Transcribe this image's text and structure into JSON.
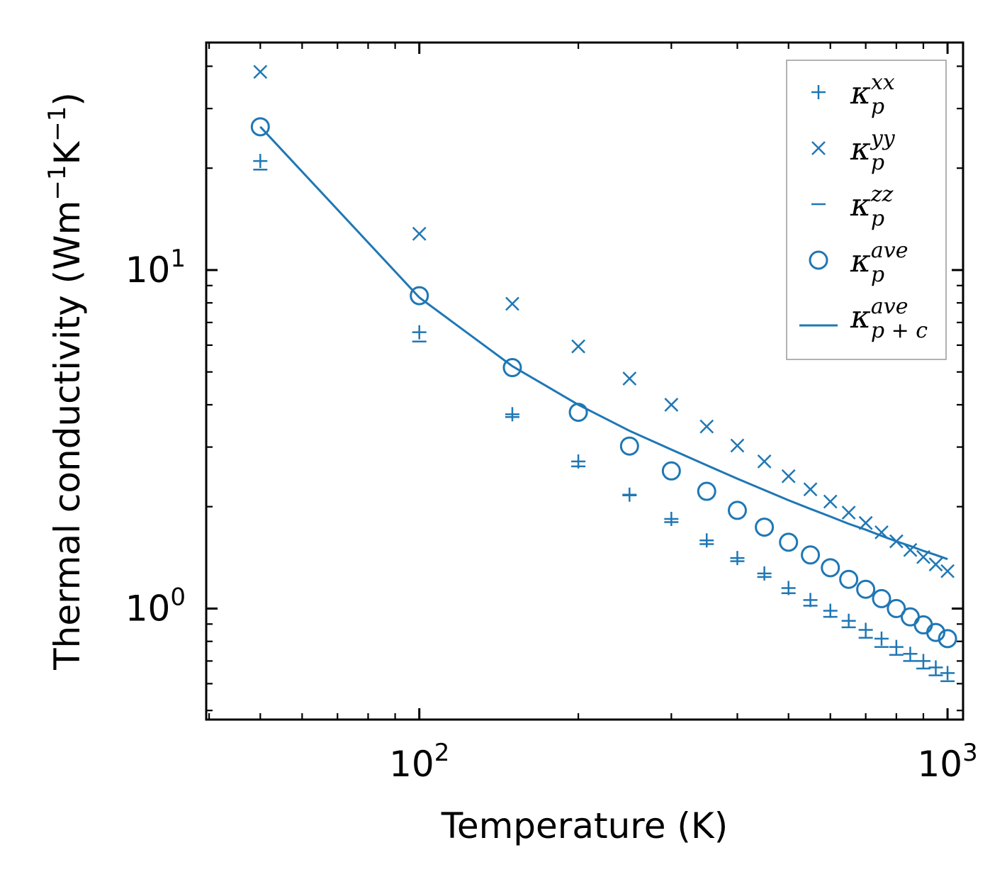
{
  "chart_data": {
    "type": "scatter",
    "xscale": "log",
    "yscale": "log",
    "xlabel": "Temperature (K)",
    "ylabel": "Thermal conductivity (Wm",
    "ylabel_unit_parts": [
      "−1",
      "K",
      "−1",
      ")"
    ],
    "xlim": [
      39.5,
      1070
    ],
    "ylim": [
      0.47,
      47
    ],
    "x_ticks": [
      {
        "value": 100,
        "base": "10",
        "exp": "2"
      },
      {
        "value": 1000,
        "base": "10",
        "exp": "3"
      }
    ],
    "y_ticks": [
      {
        "value": 1,
        "base": "10",
        "exp": "0"
      },
      {
        "value": 10,
        "base": "10",
        "exp": "1"
      }
    ],
    "x": [
      50,
      100,
      150,
      200,
      250,
      300,
      350,
      400,
      450,
      500,
      550,
      600,
      650,
      700,
      750,
      800,
      850,
      900,
      950,
      1000
    ],
    "series": [
      {
        "name": "kxx",
        "marker": "plus",
        "values": [
          21.0,
          6.55,
          3.75,
          2.72,
          2.17,
          1.84,
          1.59,
          1.41,
          1.27,
          1.15,
          1.06,
          0.985,
          0.92,
          0.865,
          0.815,
          0.77,
          0.735,
          0.7,
          0.67,
          0.645
        ]
      },
      {
        "name": "kyy",
        "marker": "x",
        "values": [
          38.5,
          12.8,
          7.95,
          5.95,
          4.78,
          4.0,
          3.45,
          3.03,
          2.72,
          2.46,
          2.25,
          2.07,
          1.92,
          1.79,
          1.68,
          1.58,
          1.49,
          1.42,
          1.35,
          1.29
        ]
      },
      {
        "name": "kzz",
        "marker": "dash",
        "values": [
          19.8,
          6.15,
          3.68,
          2.63,
          2.16,
          1.8,
          1.55,
          1.38,
          1.24,
          1.11,
          1.02,
          0.945,
          0.88,
          0.82,
          0.77,
          0.73,
          0.7,
          0.665,
          0.635,
          0.61
        ]
      },
      {
        "name": "kave",
        "marker": "circle",
        "values": [
          26.5,
          8.4,
          5.15,
          3.8,
          3.02,
          2.55,
          2.22,
          1.95,
          1.74,
          1.57,
          1.44,
          1.32,
          1.22,
          1.14,
          1.07,
          1.0,
          0.945,
          0.895,
          0.85,
          0.815
        ]
      },
      {
        "name": "kave_pc",
        "marker": "line",
        "values": [
          26.5,
          8.3,
          5.2,
          4.0,
          3.35,
          2.95,
          2.65,
          2.42,
          2.24,
          2.09,
          1.97,
          1.87,
          1.78,
          1.71,
          1.64,
          1.58,
          1.53,
          1.48,
          1.44,
          1.4
        ]
      }
    ],
    "legend": {
      "position": "top-right",
      "entries": [
        {
          "series": "kxx",
          "symbol": "κ",
          "sub": "p",
          "sup": "xx"
        },
        {
          "series": "kyy",
          "symbol": "κ",
          "sub": "p",
          "sup": "yy"
        },
        {
          "series": "kzz",
          "symbol": "κ",
          "sub": "p",
          "sup": "zz"
        },
        {
          "series": "kave",
          "symbol": "κ",
          "sub": "p",
          "sup": "ave"
        },
        {
          "series": "kave_pc",
          "symbol": "κ",
          "sub": "p + c",
          "sup": "ave"
        }
      ]
    },
    "color": "#1f77b4"
  }
}
